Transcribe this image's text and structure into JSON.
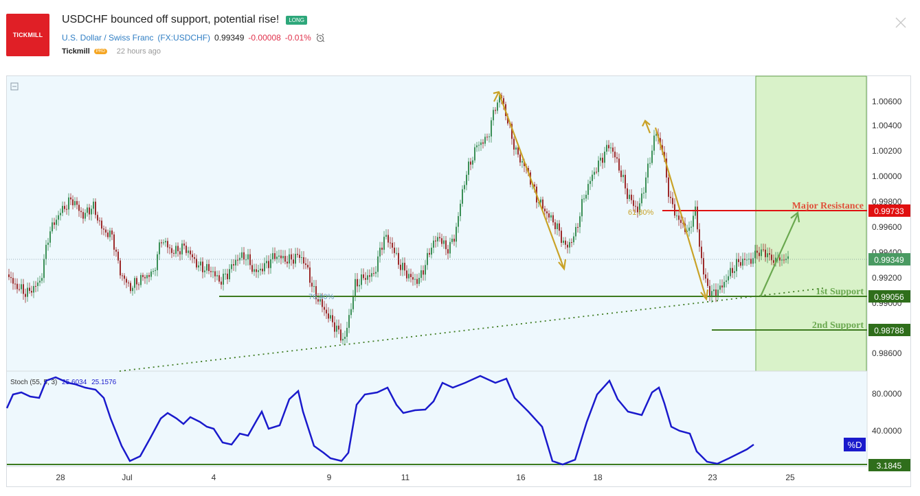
{
  "idea": {
    "title": "USDCHF bounced off support, potential rise!",
    "badge": "LONG",
    "logo_text": "TICKMILL",
    "symbol_name": "U.S. Dollar / Swiss Franc",
    "ticker": "(FX:USDCHF)",
    "price": "0.99349",
    "change": "-0.00008",
    "change_pct": "-0.01%",
    "author": "Tickmill",
    "author_badge": "PRO",
    "time_ago": "22 hours ago"
  },
  "colors": {
    "brand": "#e01f26",
    "chart_bg": "#eef8fd",
    "candle_up": "#3a8f56",
    "candle_down": "#9c2a2a",
    "resistance": "#e01010",
    "support": "#3c7a1e",
    "target_zone": "#d9f2c9",
    "arrow_gold": "#c9a227",
    "arrow_green": "#6aa84f",
    "stoch_line": "#1a1acc"
  },
  "chart_data": {
    "type": "candlestick",
    "symbol": "USDCHF",
    "y_axis_ticks": [
      "1.00600",
      "1.00400",
      "1.00200",
      "1.00000",
      "0.99800",
      "0.99600",
      "0.99400",
      "0.99200",
      "0.99000",
      "0.98600"
    ],
    "x_axis_ticks": [
      "28",
      "Jul",
      "4",
      "9",
      "11",
      "16",
      "18",
      "23",
      "25"
    ],
    "price_tags": {
      "resistance": "0.99733",
      "current": "0.99349",
      "support1": "0.99056",
      "support2": "0.98788"
    },
    "labels": {
      "resistance": "Major Resistance",
      "support1": "1st Support",
      "support2": "2nd Support",
      "fib_618": "61.80%",
      "fib_764": "76.40%"
    },
    "stoch": {
      "label": "Stoch (55, 5, 3)",
      "k_value": "25.6034",
      "d_value": "25.1576",
      "ticks": [
        "80.0000",
        "40.0000"
      ],
      "last_tag": "3.1845",
      "d_label": "%D"
    }
  }
}
